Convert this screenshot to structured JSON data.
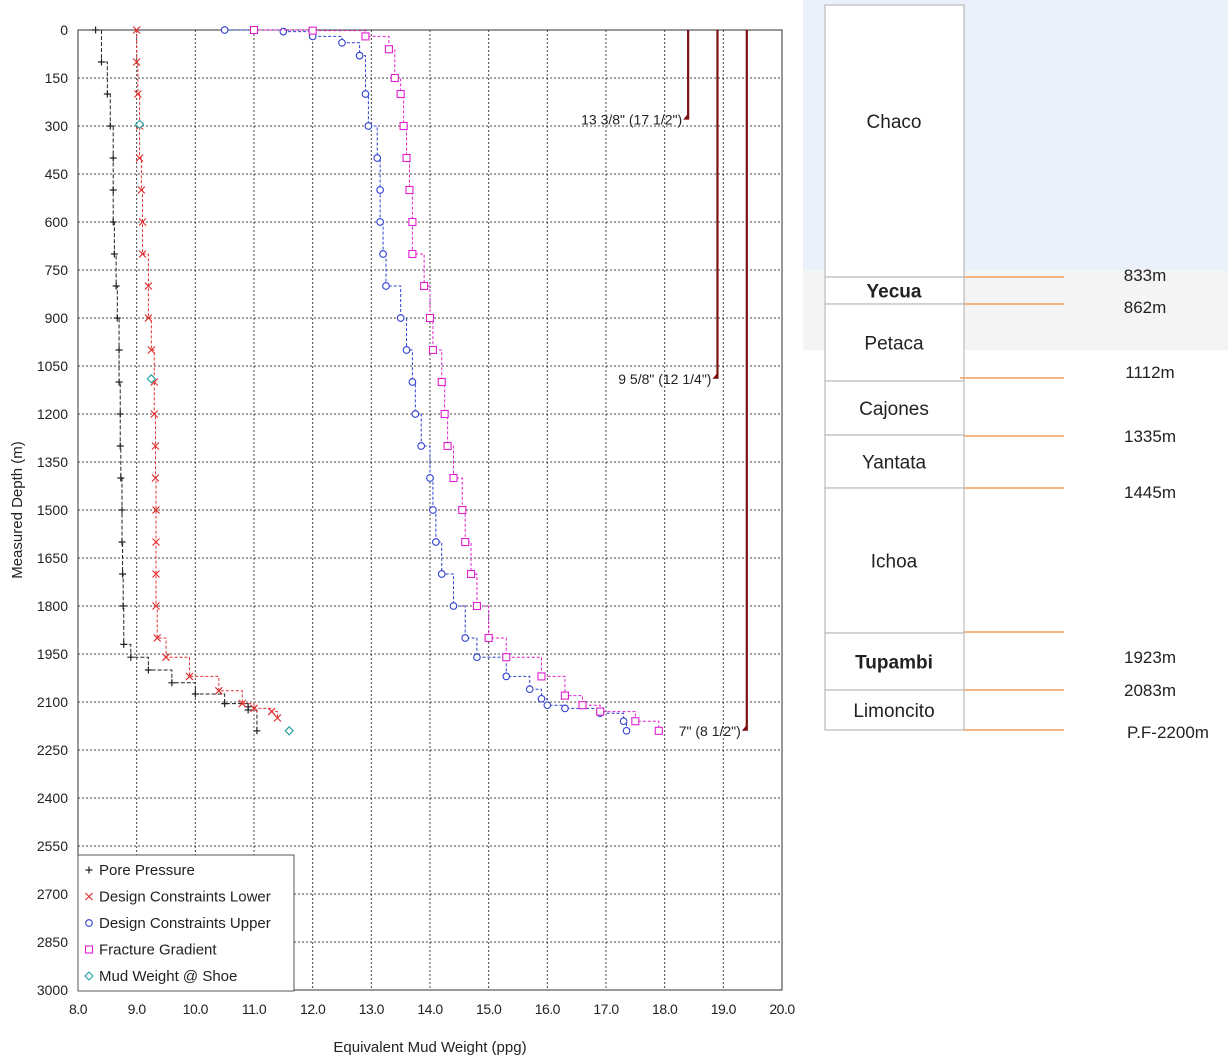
{
  "chart_data": {
    "type": "line",
    "xlabel": "Equivalent Mud Weight (ppg)",
    "ylabel": "Measured Depth (m)",
    "xlim": [
      8.0,
      20.0
    ],
    "ylim": [
      0,
      3000
    ],
    "y_inverted": true,
    "grid": true,
    "legend_position": "bottom-left",
    "x_ticks": [
      "8.0",
      "9.0",
      "10.0",
      "11.0",
      "12.0",
      "13.0",
      "14.0",
      "15.0",
      "16.0",
      "17.0",
      "18.0",
      "19.0",
      "20.0"
    ],
    "y_ticks": [
      "0",
      "150",
      "300",
      "450",
      "600",
      "750",
      "900",
      "1050",
      "1200",
      "1350",
      "1500",
      "1650",
      "1800",
      "1950",
      "2100",
      "2250",
      "2400",
      "2550",
      "2700",
      "2850",
      "3000"
    ],
    "series": [
      {
        "name": "Pore Pressure",
        "color": "#222222",
        "marker": "plus",
        "points": [
          [
            8.3,
            0
          ],
          [
            8.4,
            100
          ],
          [
            8.5,
            200
          ],
          [
            8.55,
            300
          ],
          [
            8.6,
            400
          ],
          [
            8.6,
            500
          ],
          [
            8.6,
            600
          ],
          [
            8.62,
            700
          ],
          [
            8.65,
            800
          ],
          [
            8.67,
            900
          ],
          [
            8.7,
            1000
          ],
          [
            8.7,
            1100
          ],
          [
            8.72,
            1200
          ],
          [
            8.72,
            1300
          ],
          [
            8.73,
            1400
          ],
          [
            8.75,
            1500
          ],
          [
            8.75,
            1600
          ],
          [
            8.76,
            1700
          ],
          [
            8.77,
            1800
          ],
          [
            8.78,
            1920
          ],
          [
            8.9,
            1960
          ],
          [
            9.2,
            2000
          ],
          [
            9.6,
            2040
          ],
          [
            10.0,
            2075
          ],
          [
            10.5,
            2105
          ],
          [
            10.9,
            2115
          ],
          [
            10.9,
            2125
          ],
          [
            11.05,
            2190
          ]
        ]
      },
      {
        "name": "Design Constraints Lower",
        "color": "#e03030",
        "marker": "x",
        "points": [
          [
            9.0,
            0
          ],
          [
            9.0,
            100
          ],
          [
            9.02,
            200
          ],
          [
            9.05,
            300
          ],
          [
            9.05,
            400
          ],
          [
            9.08,
            500
          ],
          [
            9.1,
            600
          ],
          [
            9.1,
            700
          ],
          [
            9.2,
            800
          ],
          [
            9.2,
            900
          ],
          [
            9.25,
            1000
          ],
          [
            9.3,
            1100
          ],
          [
            9.3,
            1200
          ],
          [
            9.32,
            1300
          ],
          [
            9.32,
            1400
          ],
          [
            9.33,
            1500
          ],
          [
            9.33,
            1600
          ],
          [
            9.33,
            1700
          ],
          [
            9.33,
            1800
          ],
          [
            9.35,
            1900
          ],
          [
            9.5,
            1960
          ],
          [
            9.9,
            2020
          ],
          [
            10.4,
            2065
          ],
          [
            10.8,
            2105
          ],
          [
            11.0,
            2120
          ],
          [
            11.3,
            2130
          ],
          [
            11.4,
            2150
          ]
        ]
      },
      {
        "name": "Design Constraints Upper",
        "color": "#2f3fd0",
        "marker": "circle",
        "points": [
          [
            10.5,
            0
          ],
          [
            11.5,
            5
          ],
          [
            12.0,
            20
          ],
          [
            12.5,
            40
          ],
          [
            12.8,
            80
          ],
          [
            12.9,
            200
          ],
          [
            12.95,
            300
          ],
          [
            13.1,
            400
          ],
          [
            13.15,
            500
          ],
          [
            13.15,
            600
          ],
          [
            13.2,
            700
          ],
          [
            13.25,
            800
          ],
          [
            13.5,
            900
          ],
          [
            13.6,
            1000
          ],
          [
            13.7,
            1100
          ],
          [
            13.75,
            1200
          ],
          [
            13.85,
            1300
          ],
          [
            14.0,
            1400
          ],
          [
            14.05,
            1500
          ],
          [
            14.1,
            1600
          ],
          [
            14.2,
            1700
          ],
          [
            14.4,
            1800
          ],
          [
            14.6,
            1900
          ],
          [
            14.8,
            1960
          ],
          [
            15.3,
            2020
          ],
          [
            15.7,
            2060
          ],
          [
            15.9,
            2090
          ],
          [
            16.0,
            2110
          ],
          [
            16.3,
            2120
          ],
          [
            16.9,
            2135
          ],
          [
            17.3,
            2160
          ],
          [
            17.35,
            2190
          ]
        ]
      },
      {
        "name": "Fracture Gradient",
        "color": "#e020d0",
        "marker": "square",
        "points": [
          [
            11.0,
            0
          ],
          [
            12.0,
            2
          ],
          [
            12.9,
            20
          ],
          [
            13.3,
            60
          ],
          [
            13.4,
            150
          ],
          [
            13.5,
            200
          ],
          [
            13.55,
            300
          ],
          [
            13.6,
            400
          ],
          [
            13.65,
            500
          ],
          [
            13.7,
            600
          ],
          [
            13.7,
            700
          ],
          [
            13.9,
            800
          ],
          [
            14.0,
            900
          ],
          [
            14.05,
            1000
          ],
          [
            14.2,
            1100
          ],
          [
            14.25,
            1200
          ],
          [
            14.3,
            1300
          ],
          [
            14.4,
            1400
          ],
          [
            14.55,
            1500
          ],
          [
            14.6,
            1600
          ],
          [
            14.7,
            1700
          ],
          [
            14.8,
            1800
          ],
          [
            15.0,
            1900
          ],
          [
            15.3,
            1960
          ],
          [
            15.9,
            2020
          ],
          [
            16.3,
            2080
          ],
          [
            16.6,
            2110
          ],
          [
            16.9,
            2130
          ],
          [
            17.5,
            2160
          ],
          [
            17.9,
            2190
          ]
        ]
      },
      {
        "name": "Mud Weight @ Shoe",
        "color": "#20a0a0",
        "marker": "diamond",
        "points": [
          [
            9.05,
            295
          ],
          [
            9.25,
            1090
          ],
          [
            11.6,
            2190
          ]
        ]
      }
    ],
    "casings": [
      {
        "label": "13 3/8\" (17 1/2\")",
        "x": 18.4,
        "top": 0,
        "shoe": 280
      },
      {
        "label": "9 5/8\" (12 1/4\")",
        "x": 18.9,
        "top": 0,
        "shoe": 1090
      },
      {
        "label": "7\" (8 1/2\")",
        "x": 19.4,
        "top": 0,
        "shoe": 2190
      }
    ],
    "casing_color": "#7a1010"
  },
  "stratigraphy": {
    "formations": [
      "Chaco",
      "Yecua",
      "Petaca",
      "Cajones",
      "Yantata",
      "Ichoa",
      "Tupambi",
      "Limoncito"
    ],
    "depths": [
      "833m",
      "862m",
      "1112m",
      "1335m",
      "1445m",
      "1923m",
      "2083m",
      "P.F-2200m"
    ],
    "line_color": "#f0a060"
  }
}
